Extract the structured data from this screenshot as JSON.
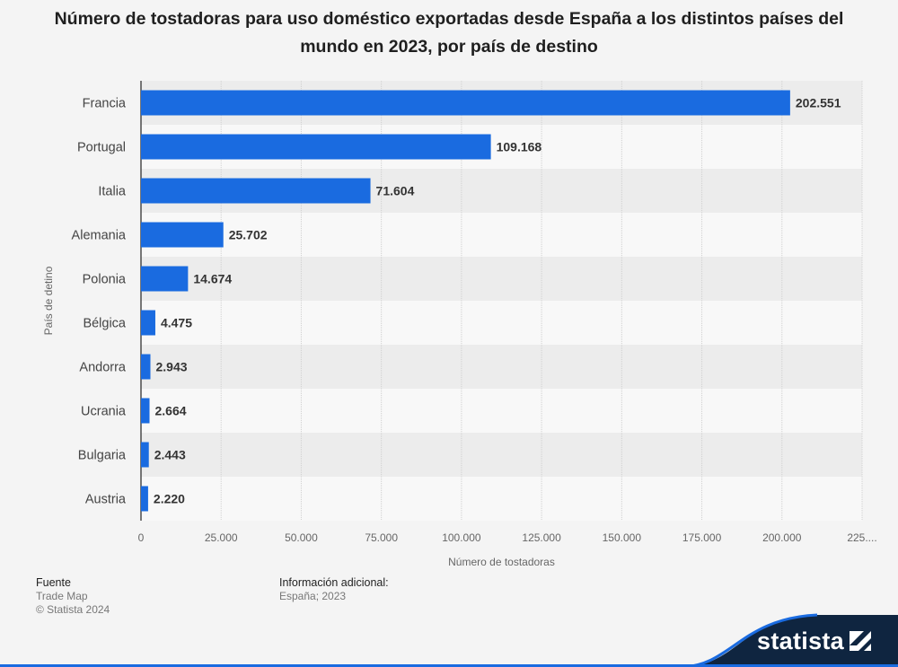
{
  "title": "Número de tostadoras para uso doméstico exportadas desde España a los distintos países del mundo en 2023, por país de destino",
  "chart_data": {
    "type": "bar",
    "orientation": "horizontal",
    "title": "Número de tostadoras para uso doméstico exportadas desde España a los distintos países del mundo en 2023, por país de destino",
    "categories": [
      "Francia",
      "Portugal",
      "Italia",
      "Alemania",
      "Polonia",
      "Bélgica",
      "Andorra",
      "Ucrania",
      "Bulgaria",
      "Austria"
    ],
    "values": [
      202551,
      109168,
      71604,
      25702,
      14674,
      4475,
      2943,
      2664,
      2443,
      2220
    ],
    "value_labels": [
      "202.551",
      "109.168",
      "71.604",
      "25.702",
      "14.674",
      "4.475",
      "2.943",
      "2.664",
      "2.443",
      "2.220"
    ],
    "xlabel": "Número de tostadoras",
    "ylabel": "País de detino",
    "xlim": [
      0,
      225000
    ],
    "x_ticks": [
      0,
      25000,
      50000,
      75000,
      100000,
      125000,
      150000,
      175000,
      200000,
      225000
    ],
    "x_tick_labels": [
      "0",
      "25.000",
      "50.000",
      "75.000",
      "100.000",
      "125.000",
      "150.000",
      "175.000",
      "200.000",
      "225...."
    ],
    "grid": true,
    "bar_color": "#1a6be0"
  },
  "footer": {
    "source_heading": "Fuente",
    "source_name": "Trade Map",
    "copyright": "© Statista 2024",
    "info_heading": "Información adicional:",
    "info_text": "España; 2023"
  },
  "brand": {
    "name": "statista",
    "color": "#0f2540"
  }
}
